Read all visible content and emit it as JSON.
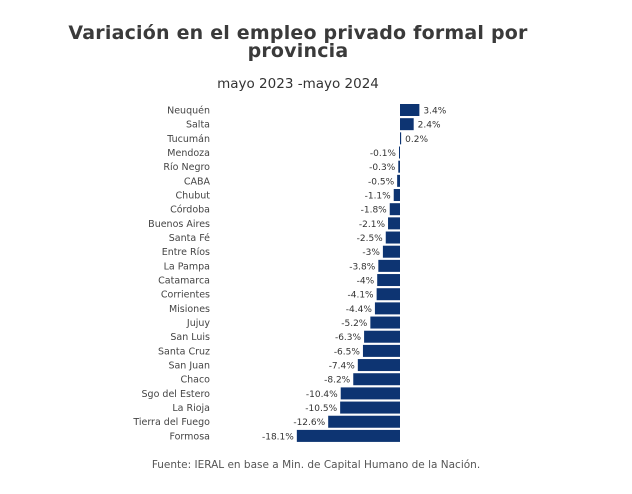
{
  "chart_data": {
    "type": "bar",
    "orientation": "horizontal",
    "title": "Variación en el empleo privado formal por provincia",
    "title_lines": [
      "Variación en el empleo privado formal por",
      "provincia"
    ],
    "subtitle": "mayo 2023 -mayo 2024",
    "xlabel": "",
    "ylabel": "",
    "unit": "%",
    "grid": false,
    "legend": "none",
    "bar_color": "#0d3472",
    "xlim": [
      -18.1,
      3.4
    ],
    "categories": [
      "Neuquén",
      "Salta",
      "Tucumán",
      "Mendoza",
      "Río Negro",
      "CABA",
      "Chubut",
      "Córdoba",
      "Buenos Aires",
      "Santa Fé",
      "Entre Ríos",
      "La Pampa",
      "Catamarca",
      "Corrientes",
      "Misiones",
      "Jujuy",
      "San Luis",
      "Santa Cruz",
      "San Juan",
      "Chaco",
      "Sgo del Estero",
      "La Rioja",
      "Tierra del Fuego",
      "Formosa"
    ],
    "values": [
      3.4,
      2.4,
      0.2,
      -0.1,
      -0.3,
      -0.5,
      -1.1,
      -1.8,
      -2.1,
      -2.5,
      -3,
      -3.8,
      -4,
      -4.1,
      -4.4,
      -5.2,
      -6.3,
      -6.5,
      -7.4,
      -8.2,
      -10.4,
      -10.5,
      -12.6,
      -18.1
    ],
    "data_labels": [
      "3.4%",
      "2.4%",
      "0.2%",
      "-0.1%",
      "-0.3%",
      "-0.5%",
      "-1.1%",
      "-1.8%",
      "-2.1%",
      "-2.5%",
      "-3%",
      "-3.8%",
      "-4%",
      "-4.1%",
      "-4.4%",
      "-5.2%",
      "-6.3%",
      "-6.5%",
      "-7.4%",
      "-8.2%",
      "-10.4%",
      "-10.5%",
      "-12.6%",
      "-18.1%"
    ],
    "source": "Fuente: IERAL en base a Min. de Capital Humano de la Nación."
  }
}
